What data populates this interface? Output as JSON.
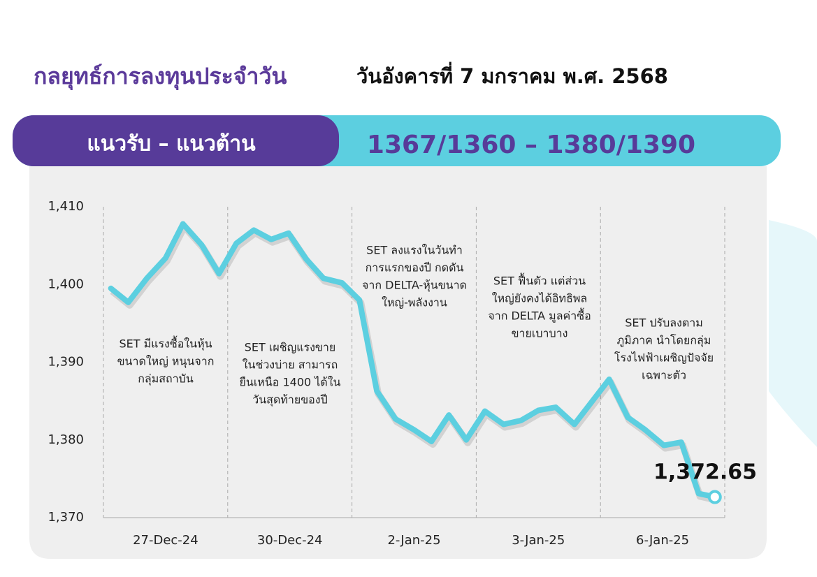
{
  "header": {
    "title": "กลยุทธ์การลงทุนประจำวัน",
    "date": "วันอังคารที่ 7 มกราคม พ.ศ. 2568"
  },
  "banner": {
    "label": "แนวรับ – แนวต้าน",
    "levels": "1367/1360 – 1380/1390"
  },
  "chart_data": {
    "type": "line",
    "categories": [
      "27-Dec-24",
      "30-Dec-24",
      "2-Jan-25",
      "3-Jan-25",
      "6-Jan-25"
    ],
    "xlim": [
      0,
      5
    ],
    "ylim": [
      1370,
      1410
    ],
    "yticks": [
      {
        "value": 1370,
        "label": "1,370"
      },
      {
        "value": 1380,
        "label": "1,380"
      },
      {
        "value": 1390,
        "label": "1,390"
      },
      {
        "value": 1400,
        "label": "1,400"
      },
      {
        "value": 1410,
        "label": "1,410"
      }
    ],
    "series": [
      {
        "color": "#5ccfe0",
        "x": [
          0.06,
          0.2,
          0.35,
          0.5,
          0.64,
          0.79,
          0.93,
          1.07,
          1.21,
          1.35,
          1.49,
          1.63,
          1.77,
          1.92,
          2.06,
          2.2,
          2.35,
          2.5,
          2.64,
          2.78,
          2.92,
          3.07,
          3.22,
          3.36,
          3.5,
          3.64,
          3.79,
          3.93,
          4.07,
          4.22,
          4.36,
          4.51,
          4.65,
          4.79,
          4.92
        ],
        "values": [
          1399.5,
          1397.7,
          1400.8,
          1403.4,
          1407.8,
          1405.1,
          1401.4,
          1405.3,
          1407.0,
          1405.8,
          1406.6,
          1403.3,
          1400.8,
          1400.2,
          1398.0,
          1386.3,
          1382.7,
          1381.3,
          1379.8,
          1383.2,
          1380.0,
          1383.7,
          1382.0,
          1382.5,
          1383.8,
          1384.2,
          1382.0,
          1384.9,
          1387.8,
          1382.9,
          1381.3,
          1379.3,
          1379.7,
          1373.1,
          1372.65
        ]
      }
    ],
    "last_label": "1,372.65",
    "annotations": [
      [
        "SET มีแรงซื้อในหุ้น",
        "ขนาดใหญ่ หนุนจาก",
        "กลุ่มสถาบัน"
      ],
      [
        "SET เผชิญแรงขาย",
        "ในช่วงบ่าย สามารถ",
        "ยืนเหนือ 1400 ได้ใน",
        "วันสุดท้ายของปี"
      ],
      [
        "SET ลงแรงในวันทำ",
        "การแรกของปี กดดัน",
        "จาก DELTA-หุ้นขนาด",
        "ใหญ่-พลังงาน"
      ],
      [
        "SET ฟื้นตัว แต่ส่วน",
        "ใหญ่ยังคงได้อิทธิพล",
        "จาก DELTA มูลค่าซื้อ",
        "ขายเบาบาง"
      ],
      [
        "SET ปรับลงตาม",
        "ภูมิภาค นำโดยกลุ่ม",
        "โรงไฟฟ้าเผชิญปัจจัย",
        "เฉพาะตัว"
      ]
    ]
  }
}
